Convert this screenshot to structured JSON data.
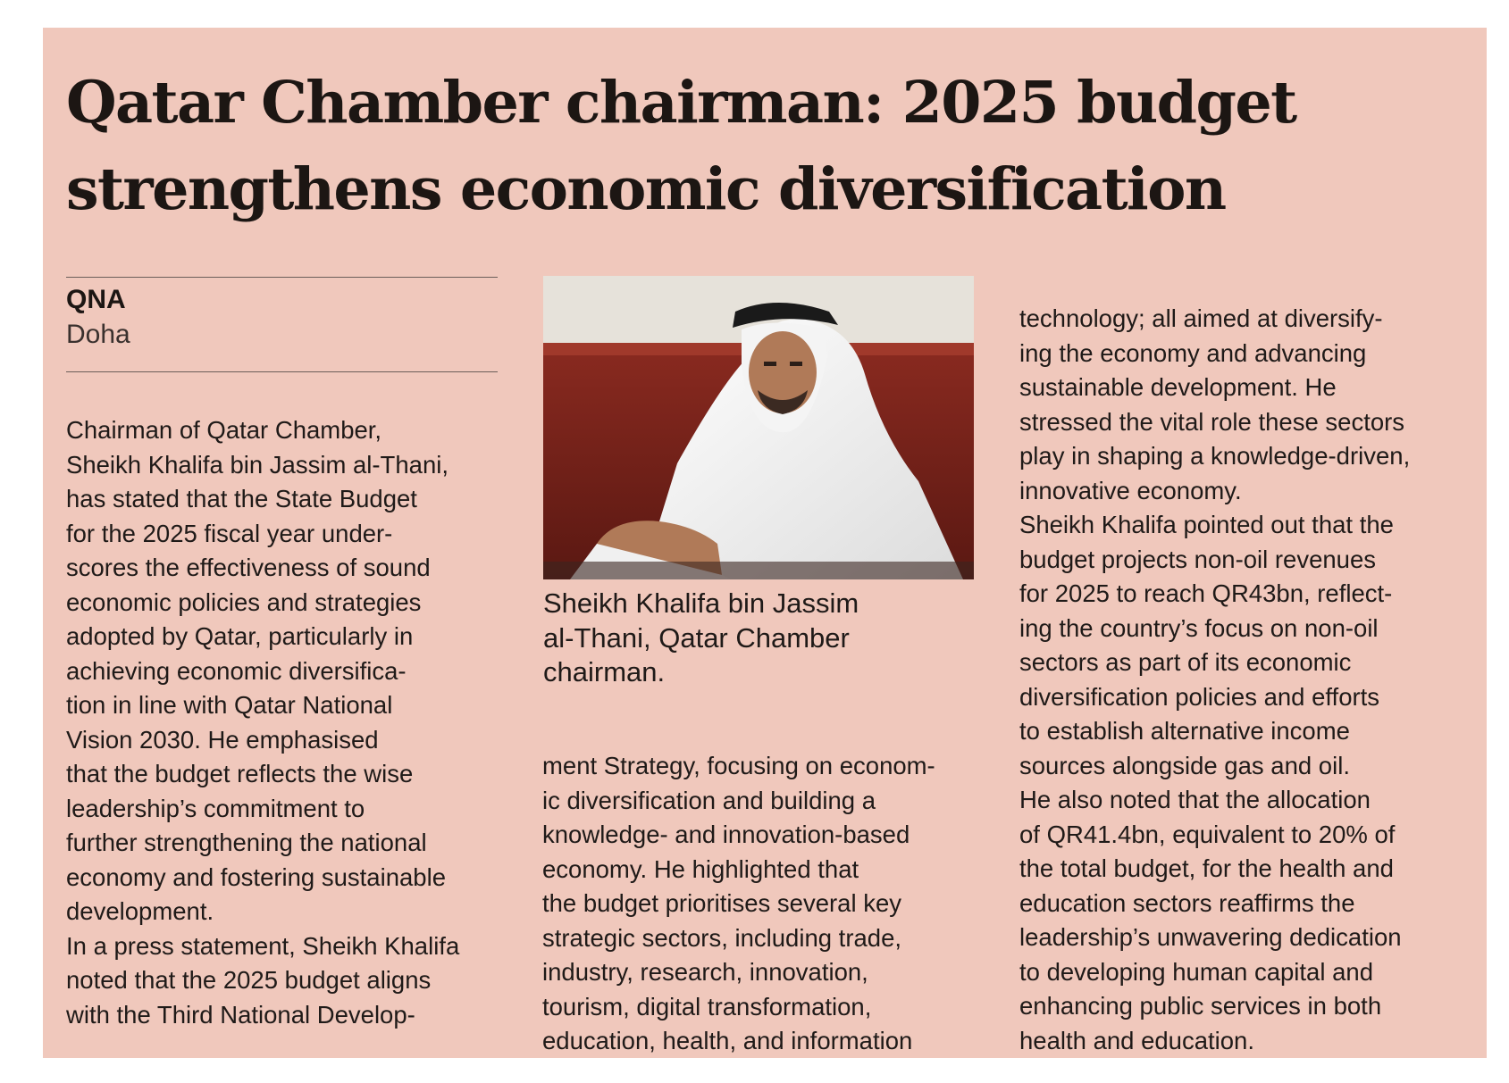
{
  "article": {
    "headline": [
      "Qatar Chamber chairman: 2025 budget",
      "strengthens economic diversification"
    ],
    "byline": {
      "source": "QNA",
      "place": "Doha"
    },
    "photo_caption": [
      "Sheikh Khalifa bin Jassim",
      "al-Thani, Qatar Chamber",
      "chairman."
    ],
    "column1": [
      "Chairman of Qatar Chamber,",
      "Sheikh Khalifa bin Jassim al-Thani,",
      "has stated that the State Budget",
      "for the 2025 fiscal year under-",
      "scores the effectiveness of sound",
      "economic policies and strategies",
      "adopted by Qatar, particularly in",
      "achieving economic diversifica-",
      "tion in line with Qatar National",
      "Vision 2030. He emphasised",
      "that the budget reflects the wise",
      "leadership’s commitment to",
      "further strengthening the national",
      "economy and fostering sustainable",
      "development.",
      "In a press statement, Sheikh Khalifa",
      "noted that the 2025 budget aligns",
      "with the Third National Develop-"
    ],
    "column2": [
      "ment Strategy, focusing on econom-",
      "ic diversification and building a",
      "knowledge- and innovation-based",
      "economy. He highlighted that",
      "the budget prioritises several key",
      "strategic sectors, including trade,",
      "industry, research, innovation,",
      "tourism, digital transformation,",
      "education, health, and information"
    ],
    "column3": [
      "technology; all aimed at diversify-",
      "ing the economy and advancing",
      "sustainable development. He",
      "stressed the vital role these sectors",
      "play in shaping a knowledge-driven,",
      "innovative economy.",
      "Sheikh Khalifa pointed out that the",
      "budget projects non-oil revenues",
      "for 2025 to reach QR43bn, reflect-",
      "ing the country’s focus on non-oil",
      "sectors as part of its economic",
      "diversification policies and efforts",
      "to establish alternative income",
      "sources alongside gas and oil.",
      "He also noted that the allocation",
      "of QR41.4bn, equivalent to 20% of",
      "the total budget, for the health and",
      "education sectors reaffirms the",
      "leadership’s unwavering dedication",
      "to developing human capital and",
      "enhancing public services in both",
      "health and education."
    ]
  },
  "colors": {
    "panel_background": "#f0c8bc",
    "text": "#1f1a18",
    "rule": "#6b5e59"
  }
}
